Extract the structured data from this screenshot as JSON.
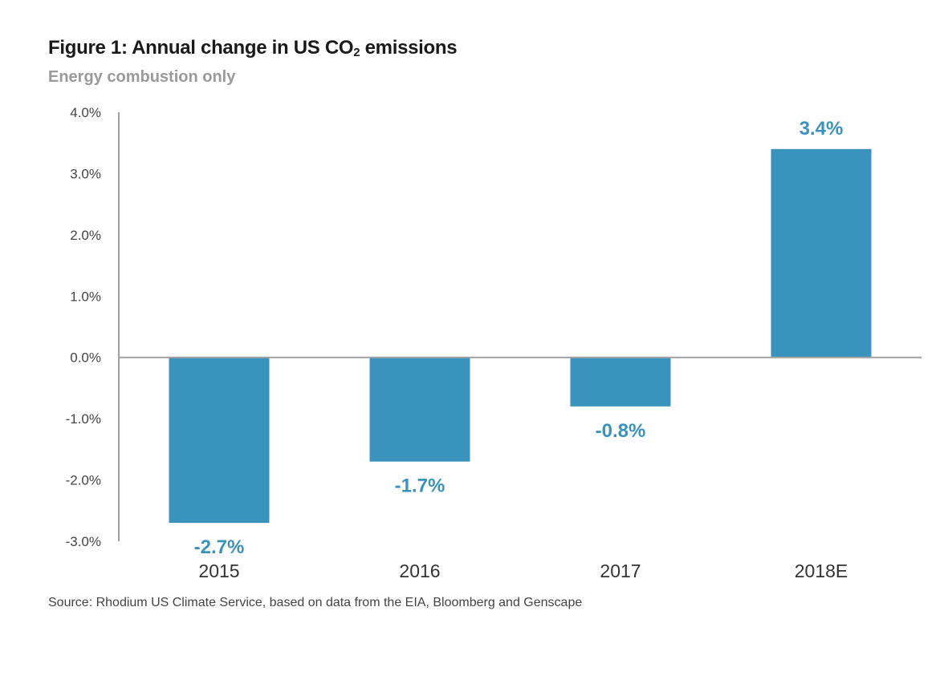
{
  "header": {
    "title_prefix": "Figure 1: Annual change in US CO",
    "title_subscript": "2",
    "title_suffix": " emissions",
    "subtitle": "Energy combustion only"
  },
  "footer": {
    "source": "Source: Rhodium US Climate Service, based on data from the EIA, Bloomberg and Genscape"
  },
  "chart_data": {
    "type": "bar",
    "title": "Figure 1: Annual change in US CO2 emissions",
    "subtitle": "Energy combustion only",
    "xlabel": "",
    "ylabel": "",
    "categories": [
      "2015",
      "2016",
      "2017",
      "2018E"
    ],
    "values": [
      -2.7,
      -1.7,
      -0.8,
      3.4
    ],
    "data_labels": [
      "-2.7%",
      "-1.7%",
      "-0.8%",
      "3.4%"
    ],
    "ylim": [
      -3.0,
      4.0
    ],
    "yticks": [
      4.0,
      3.0,
      2.0,
      1.0,
      0.0,
      -1.0,
      -2.0,
      -3.0
    ],
    "ytick_labels": [
      "4.0%",
      "3.0%",
      "2.0%",
      "1.0%",
      "0.0%",
      "-1.0%",
      "-2.0%",
      "-3.0%"
    ],
    "grid": false,
    "legend": "none",
    "bar_color": "#3a93bd",
    "label_color": "#3a93bd",
    "axis_color": "#a0a0a0"
  }
}
